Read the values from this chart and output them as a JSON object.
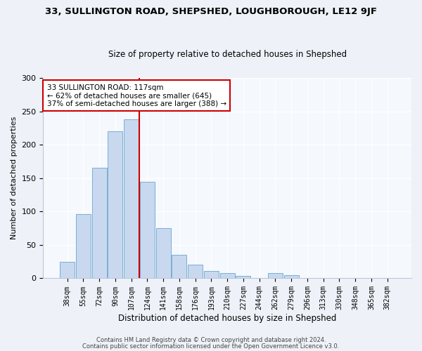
{
  "title": "33, SULLINGTON ROAD, SHEPSHED, LOUGHBOROUGH, LE12 9JF",
  "subtitle": "Size of property relative to detached houses in Shepshed",
  "xlabel": "Distribution of detached houses by size in Shepshed",
  "ylabel": "Number of detached properties",
  "bin_labels": [
    "38sqm",
    "55sqm",
    "72sqm",
    "90sqm",
    "107sqm",
    "124sqm",
    "141sqm",
    "158sqm",
    "176sqm",
    "193sqm",
    "210sqm",
    "227sqm",
    "244sqm",
    "262sqm",
    "279sqm",
    "296sqm",
    "313sqm",
    "330sqm",
    "348sqm",
    "365sqm",
    "382sqm"
  ],
  "bar_values": [
    25,
    96,
    165,
    220,
    238,
    145,
    75,
    35,
    20,
    11,
    8,
    4,
    1,
    8,
    5,
    1,
    1,
    0,
    0,
    0,
    1
  ],
  "bar_color": "#c8d8ef",
  "bar_edge_color": "#7aaed4",
  "vline_x_bin": 4.5,
  "vline_color": "#cc0000",
  "annotation_text": "33 SULLINGTON ROAD: 117sqm\n← 62% of detached houses are smaller (645)\n37% of semi-detached houses are larger (388) →",
  "annotation_box_color": "#ffffff",
  "annotation_box_edge": "#cc0000",
  "ylim": [
    0,
    300
  ],
  "yticks": [
    0,
    50,
    100,
    150,
    200,
    250,
    300
  ],
  "footer1": "Contains HM Land Registry data © Crown copyright and database right 2024.",
  "footer2": "Contains public sector information licensed under the Open Government Licence v3.0.",
  "bg_color": "#eef2f8",
  "plot_bg_color": "#f5f8fd",
  "title_fontsize": 9.5,
  "subtitle_fontsize": 8.5,
  "ylabel_fontsize": 8,
  "xlabel_fontsize": 8.5,
  "tick_fontsize": 7,
  "ytick_fontsize": 8,
  "annotation_fontsize": 7.5,
  "footer_fontsize": 6
}
